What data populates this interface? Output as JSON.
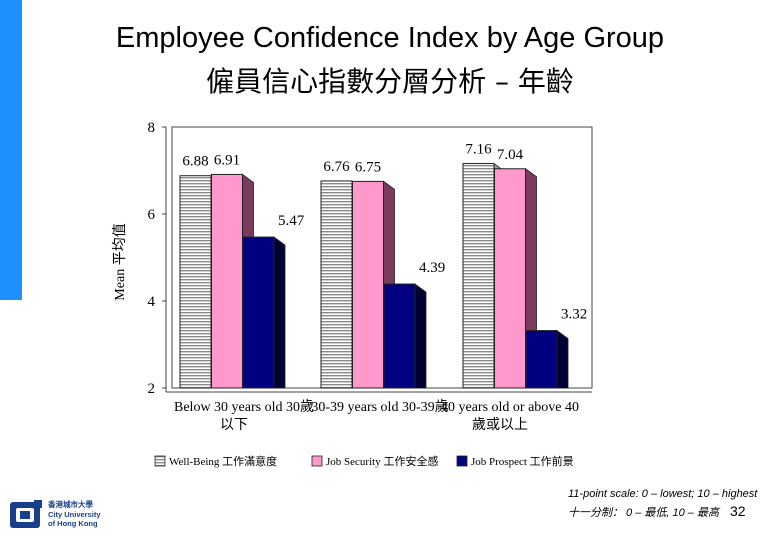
{
  "title": "Employee Confidence Index by Age Group",
  "title_zh": "僱員信心指數分層分析 – 年齡",
  "colors": {
    "side_bar": "#1e90ff",
    "well_being": "#d9d9d9",
    "job_security": "#ff99cc",
    "job_prospect": "#000080",
    "side_face": "#7a3b5e"
  },
  "chart_data": {
    "type": "bar",
    "ylabel": "Mean 平均值",
    "ylim": [
      2,
      8
    ],
    "yticks": [
      "2",
      "4",
      "6",
      "8"
    ],
    "categories": [
      "Below 30 years old 30歲以下",
      "30-39 years old 30-39歲",
      "40 years old or above 40歲或以上"
    ],
    "category_lines": [
      [
        "Below 30 years old 30歲",
        "以下"
      ],
      [
        "30-39 years old 30-39歲",
        ""
      ],
      [
        "40 years old or above 40",
        "歲或以上"
      ]
    ],
    "series": [
      {
        "name": "Well-Being 工作滿意度",
        "values": [
          6.88,
          6.76,
          7.16
        ],
        "labels": [
          "6.88",
          "6.76",
          "7.16"
        ]
      },
      {
        "name": "Job Security 工作安全感",
        "values": [
          6.91,
          6.75,
          7.04
        ],
        "labels": [
          "6.91",
          "6.75",
          "7.04"
        ]
      },
      {
        "name": "Job Prospect 工作前景",
        "values": [
          5.47,
          4.39,
          3.32
        ],
        "labels": [
          "5.47",
          "4.39",
          "3.32"
        ]
      }
    ],
    "legend_position": "bottom",
    "grid": false
  },
  "footnote": {
    "line1": "11-point scale: 0 – lowest; 10 – highest",
    "line2": "十一分制： 0 – 最低, 10 – 最高"
  },
  "page_number": "32",
  "logo": {
    "line1": "香港城市大學",
    "line2": "City University",
    "line3": "of Hong Kong"
  }
}
